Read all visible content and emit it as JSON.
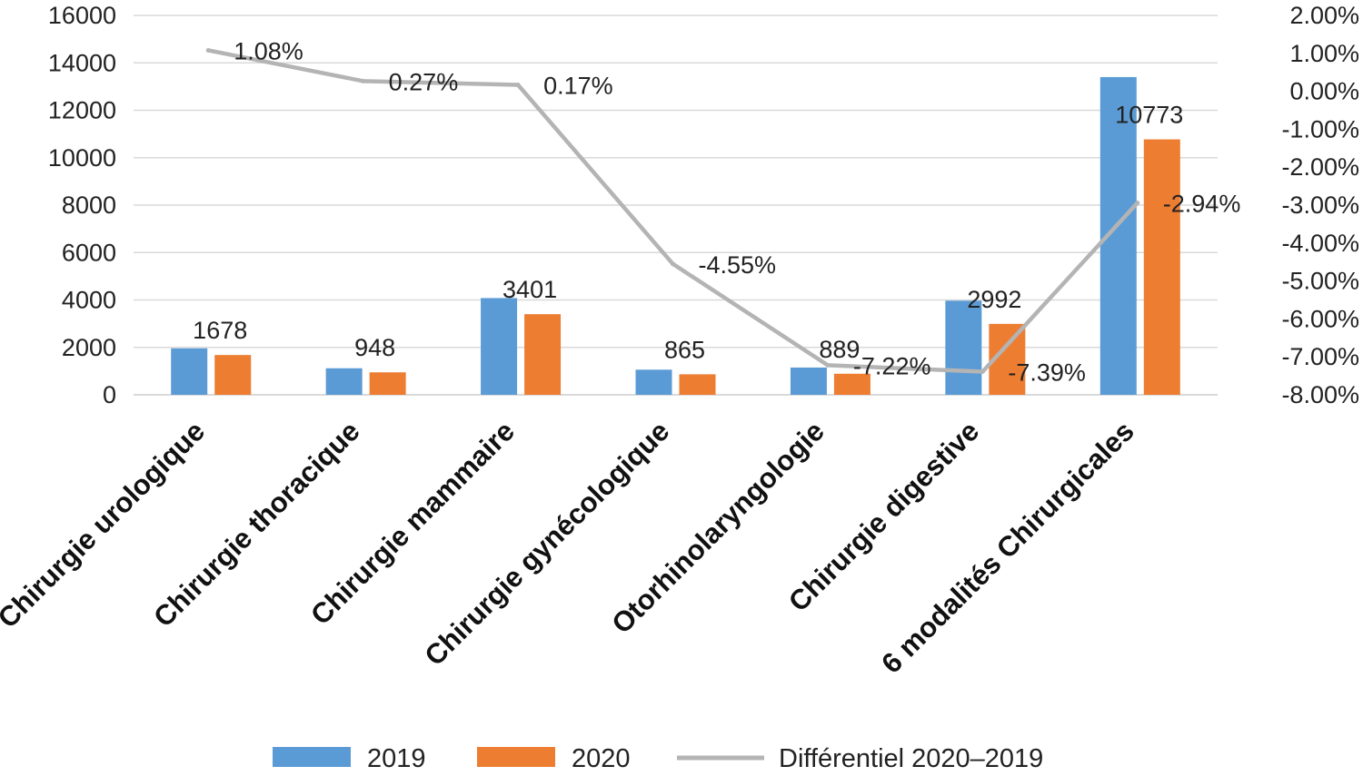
{
  "chart_data": {
    "type": "bar",
    "title": "",
    "xlabel": "",
    "ylabel": "",
    "categories": [
      "Chirurgie urologique",
      "Chirurgie thoracique",
      "Chirurgie mammaire",
      "Chirurgie gynécologique",
      "Otorhinolaryngologie",
      "Chirurgie digestive",
      "6 modalités Chirurgicales"
    ],
    "series": [
      {
        "name": "2019",
        "type": "bar",
        "axis": "left",
        "color": "#5b9bd5",
        "values": [
          1960,
          1120,
          4080,
          1060,
          1150,
          3970,
          13400
        ]
      },
      {
        "name": "2020",
        "type": "bar",
        "axis": "left",
        "color": "#ed7d31",
        "values": [
          1678,
          948,
          3401,
          865,
          889,
          2992,
          10773
        ],
        "data_labels": [
          "1678",
          "948",
          "3401",
          "865",
          "889",
          "2992",
          "10773"
        ]
      },
      {
        "name": "Différentiel 2020–2019",
        "type": "line",
        "axis": "right",
        "color": "#b4b4b4",
        "values": [
          1.08,
          0.27,
          0.17,
          -4.55,
          -7.22,
          -7.39,
          -2.94
        ],
        "data_labels": [
          "1.08%",
          "0.27%",
          "0.17%",
          "-4.55%",
          "-7.22%",
          "-7.39%",
          "-2.94%"
        ]
      }
    ],
    "ylim": [
      0,
      16000
    ],
    "yticks": [
      "0",
      "2000",
      "4000",
      "6000",
      "8000",
      "10000",
      "12000",
      "14000",
      "16000"
    ],
    "y2lim": [
      -8,
      2
    ],
    "y2ticks": [
      "2.00%",
      "1.00%",
      "0.00%",
      "-1.00%",
      "-2.00%",
      "-3.00%",
      "-4.00%",
      "-5.00%",
      "-6.00%",
      "-7.00%",
      "-8.00%"
    ],
    "grid": true,
    "legend_position": "bottom",
    "legend": [
      "2019",
      "2020",
      "Différentiel 2020–2019"
    ]
  }
}
